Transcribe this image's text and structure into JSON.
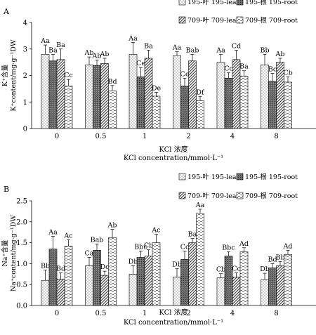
{
  "chart_data": [
    {
      "panel_label": "A",
      "type": "bar",
      "categories": [
        "0",
        "0.5",
        "1",
        "2",
        "4",
        "8"
      ],
      "ylabel_cn": "K⁺含量",
      "ylabel_en": "K⁺content/mg·g⁻¹DW",
      "xlabel_cn": "KCl 浓度",
      "xlabel_en": "KCl concentration/mmol·L⁻¹",
      "ylim": [
        0,
        4
      ],
      "yticks": [
        0,
        1,
        2,
        3,
        4
      ],
      "legend_position": "top-right",
      "series": [
        {
          "name": "195-叶 195-leaf",
          "pattern": "dots",
          "values": [
            2.8,
            2.4,
            2.8,
            2.75,
            2.5,
            2.4
          ],
          "errors": [
            0.35,
            0.3,
            0.45,
            0.15,
            0.3,
            0.4
          ],
          "labels": [
            "Aa",
            "Ab",
            "Aa",
            "Aa",
            "Aa",
            "Bb"
          ]
        },
        {
          "name": "195-根 195-root",
          "pattern": "dark",
          "values": [
            2.55,
            2.38,
            1.95,
            1.6,
            1.9,
            1.78
          ],
          "errors": [
            0.25,
            0.2,
            0.35,
            0.3,
            0.2,
            0.3
          ],
          "labels": [
            "Ba",
            "Ab",
            "Ce",
            "Ce",
            "Cc",
            "Bc"
          ]
        },
        {
          "name": "709-叶 709-leaf",
          "pattern": "hatch",
          "values": [
            2.6,
            2.45,
            2.65,
            2.55,
            2.6,
            2.5
          ],
          "errors": [
            0.4,
            0.2,
            0.3,
            0.25,
            0.35,
            0.15
          ],
          "labels": [
            "Ba",
            "Ab",
            "Ba",
            "Bab",
            "Cd",
            "Ab"
          ]
        },
        {
          "name": "709-根 709-root",
          "pattern": "dash",
          "values": [
            1.6,
            1.42,
            1.22,
            1.05,
            1.98,
            1.75
          ],
          "errors": [
            0.25,
            0.2,
            0.15,
            0.15,
            0.2,
            0.2
          ],
          "labels": [
            "Cc",
            "Bd",
            "De",
            "Df",
            "Ba",
            "Cb"
          ]
        }
      ]
    },
    {
      "panel_label": "B",
      "type": "bar",
      "categories": [
        "0",
        "0.5",
        "1",
        "2",
        "4",
        "8"
      ],
      "ylabel_cn": "Na⁺含量",
      "ylabel_en": "Na⁺content/mg·g⁻¹DW",
      "xlabel_cn": "KCl 浓度",
      "xlabel_en": "KCl concentration/mmol·L⁻¹",
      "ylim": [
        0,
        2.5
      ],
      "yticks": [
        "0.0",
        "0.5",
        "1.0",
        "1.5",
        "2.0",
        "2.5"
      ],
      "legend_position": "top-right",
      "series": [
        {
          "name": "195-叶 195-leaf",
          "pattern": "dots",
          "values": [
            0.6,
            0.95,
            0.75,
            0.68,
            0.66,
            0.62
          ],
          "errors": [
            0.25,
            0.2,
            0.2,
            0.2,
            0.1,
            0.15
          ],
          "labels": [
            "Bb",
            "Ca",
            "Db",
            "Db",
            "Cb",
            "Db"
          ]
        },
        {
          "name": "195-根 195-root",
          "pattern": "dark",
          "values": [
            1.35,
            1.32,
            1.15,
            1.1,
            1.18,
            0.9
          ],
          "errors": [
            0.3,
            0.15,
            0.15,
            0.2,
            0.1,
            0.1
          ],
          "labels": [
            "Aa",
            "Bab",
            "Bbc",
            "Cc",
            "Bbc",
            "Bd"
          ]
        },
        {
          "name": "709-叶 709-leaf",
          "pattern": "hatch",
          "values": [
            0.63,
            0.72,
            1.18,
            1.5,
            0.68,
            0.95
          ],
          "errors": [
            0.15,
            0.1,
            0.15,
            0.1,
            0.1,
            0.1
          ],
          "labels": [
            "Bd",
            "Dc",
            "Cb",
            "Ba",
            "Cc",
            "Bb"
          ]
        },
        {
          "name": "709-根 709-root",
          "pattern": "dash",
          "values": [
            1.42,
            1.62,
            1.5,
            2.2,
            1.28,
            1.22
          ],
          "errors": [
            0.15,
            0.2,
            0.2,
            0.1,
            0.1,
            0.1
          ],
          "labels": [
            "Ac",
            "Ab",
            "Ac",
            "Aa",
            "Ad",
            "Ad"
          ]
        }
      ]
    }
  ]
}
